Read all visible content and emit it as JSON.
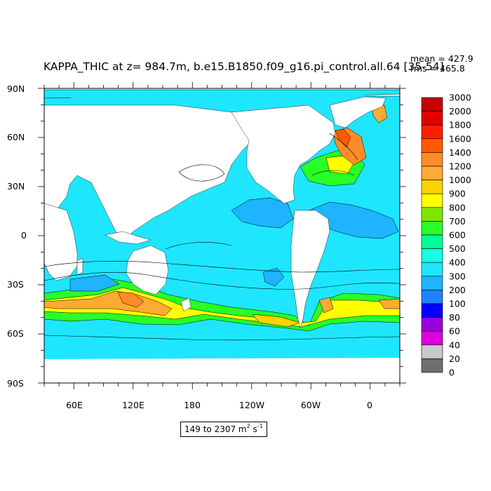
{
  "title": "KAPPA_THIC at z= 984.7m, b.e15.B1850.f09_g16.pi_control.all.64 [35-54]",
  "stats": {
    "mean": "mean = 427.9",
    "rms": "rms = 465.8"
  },
  "range_label": {
    "text": "149 to 2307 m",
    "unit_power_1": "2",
    "middle": " s",
    "unit_power_2": "-1"
  },
  "map": {
    "projection": "cylindrical equidistant",
    "lon_range": [
      30,
      390
    ],
    "lat_range": [
      -90,
      90
    ],
    "lat_ticks": [
      "90N",
      "60N",
      "30N",
      "0",
      "30S",
      "60S",
      "90S"
    ],
    "lon_ticks": [
      "60E",
      "120E",
      "180",
      "120W",
      "60W",
      "0"
    ],
    "land_color": "#ffffff",
    "ocean_background_color": "#1ee6ff"
  },
  "colorbar": {
    "labels": [
      "3000",
      "2000",
      "1800",
      "1600",
      "1400",
      "1200",
      "1000",
      "900",
      "800",
      "700",
      "600",
      "500",
      "400",
      "300",
      "200",
      "100",
      "80",
      "60",
      "40",
      "20",
      "0"
    ],
    "colors": [
      "#c80000",
      "#e10000",
      "#ff1e00",
      "#ff5a00",
      "#ff8c28",
      "#ffaa32",
      "#ffd200",
      "#ffff00",
      "#7ee600",
      "#28ff28",
      "#00ff96",
      "#18ffe0",
      "#1ee6ff",
      "#1eb4ff",
      "#1e82ff",
      "#0000ff",
      "#9a00dc",
      "#dc00dc",
      "#c8c8c8",
      "#6e6e6e"
    ]
  }
}
